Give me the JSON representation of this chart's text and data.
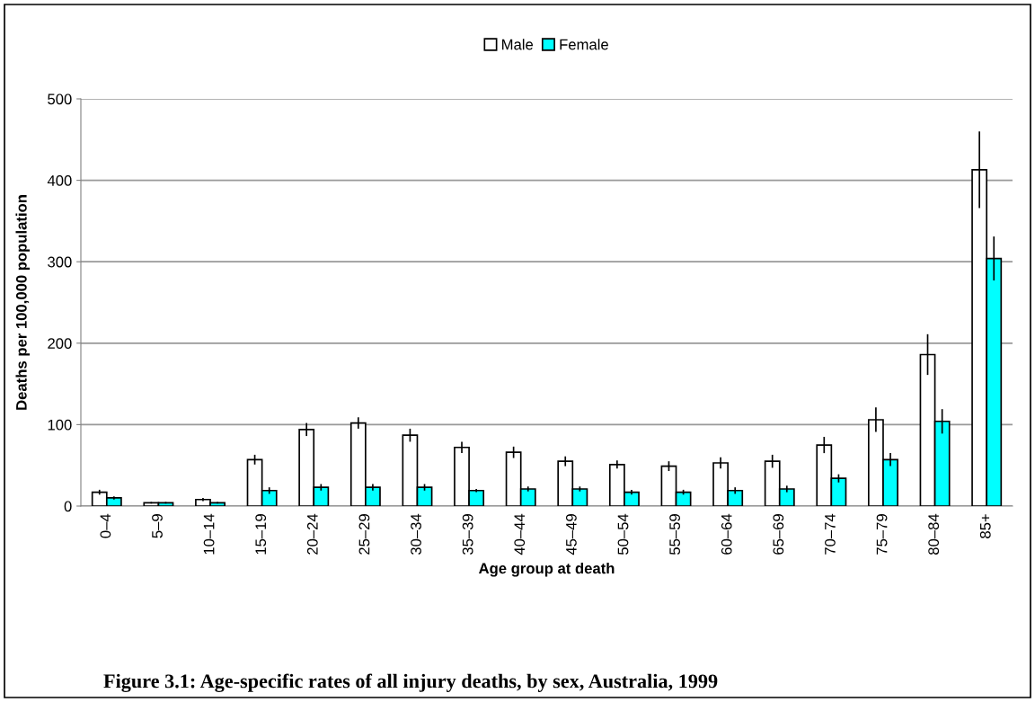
{
  "chart_data": {
    "type": "bar",
    "xlabel": "Age group at death",
    "ylabel": "Deaths per 100,000 population",
    "categories": [
      "0–4",
      "5–9",
      "10–14",
      "15–19",
      "20–24",
      "25–29",
      "30–34",
      "35–39",
      "40–44",
      "45–49",
      "50–54",
      "55–59",
      "60–64",
      "65–69",
      "70–74",
      "75–79",
      "80–84",
      "85+"
    ],
    "series": [
      {
        "name": "Male",
        "color": "#ffffff",
        "values": [
          17,
          4,
          8,
          57,
          94,
          102,
          87,
          72,
          66,
          55,
          51,
          49,
          53,
          55,
          75,
          106,
          186,
          413
        ],
        "errors": [
          3,
          1,
          2,
          6,
          8,
          7,
          8,
          7,
          7,
          6,
          5,
          6,
          7,
          8,
          10,
          15,
          25,
          47
        ]
      },
      {
        "name": "Female",
        "color": "#00ffff",
        "values": [
          10,
          4,
          4,
          19,
          23,
          23,
          23,
          19,
          21,
          21,
          17,
          17,
          19,
          21,
          34,
          57,
          104,
          304
        ],
        "errors": [
          2,
          1,
          1,
          4,
          4,
          4,
          4,
          2,
          3,
          3,
          3,
          3,
          4,
          4,
          5,
          8,
          15,
          27
        ]
      }
    ],
    "ylim": [
      0,
      500
    ],
    "yticks": [
      0,
      100,
      200,
      300,
      400,
      500
    ],
    "grid": "y",
    "legend": "top",
    "annotations": [
      "Figure 3.1: Age-specific rates of all injury deaths, by sex, Australia, 1999"
    ]
  }
}
